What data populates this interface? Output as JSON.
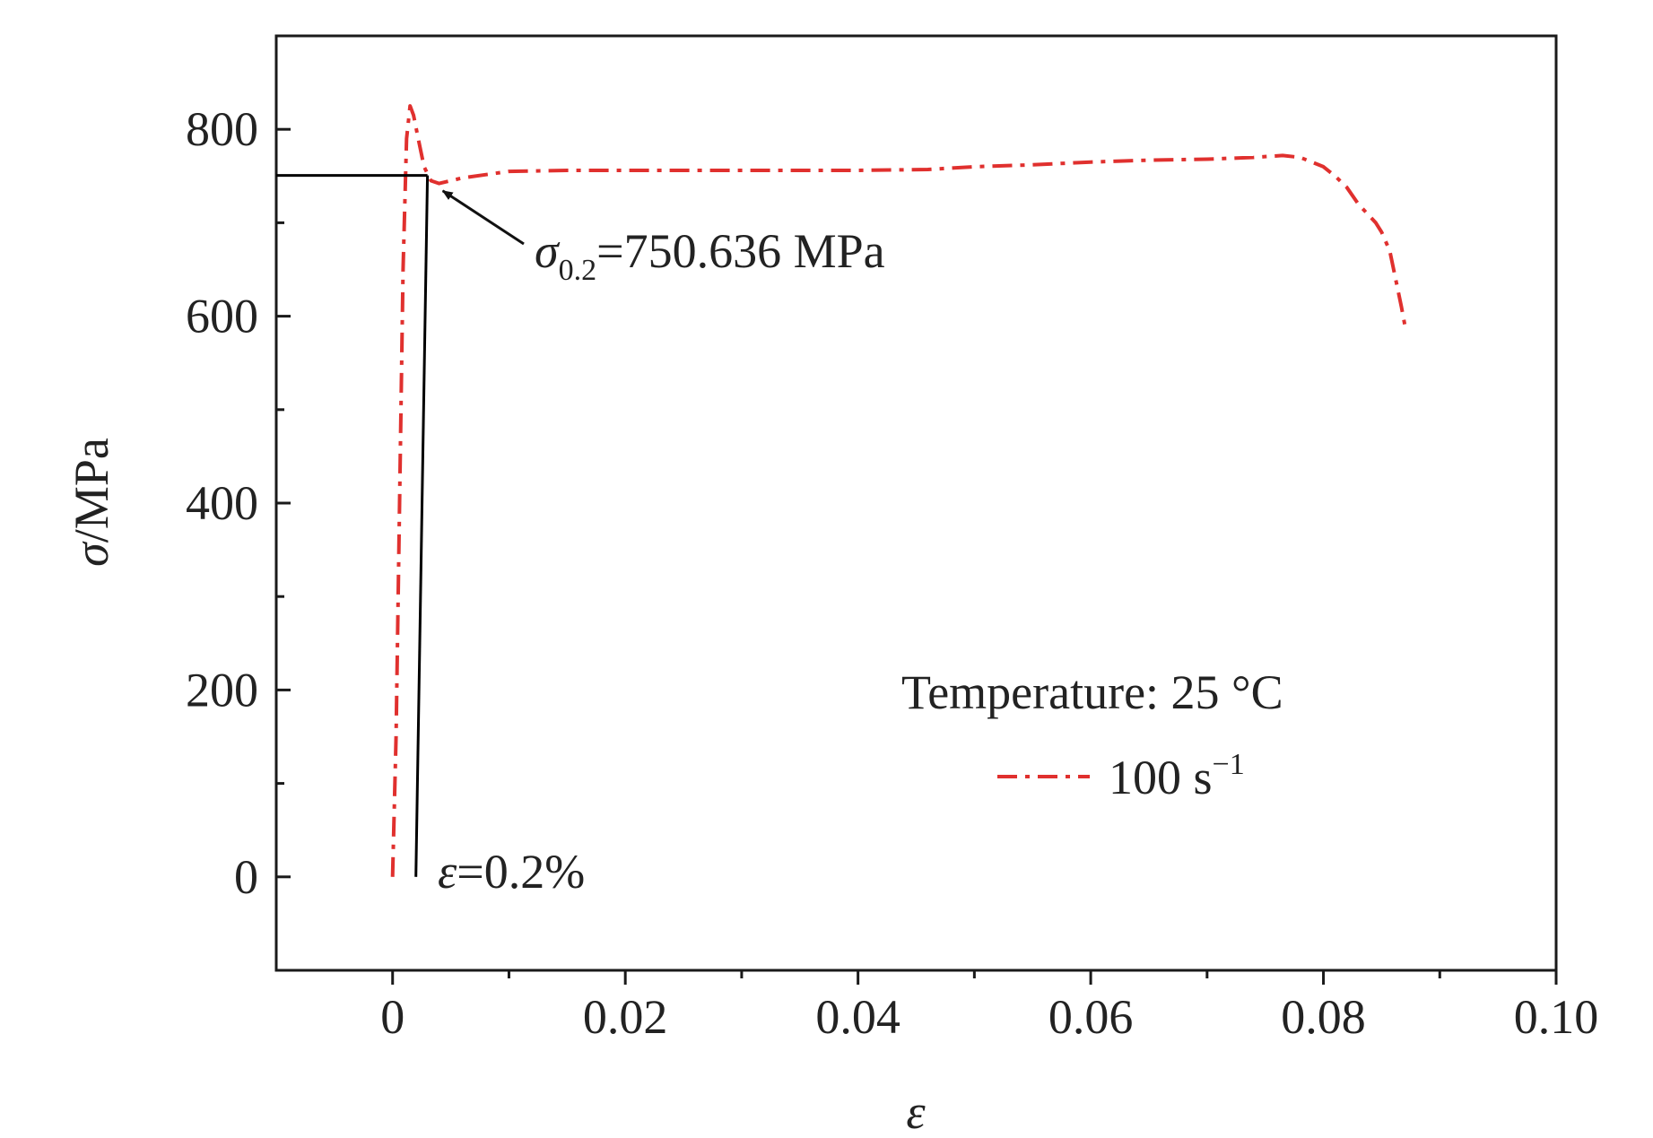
{
  "chart_data": {
    "type": "line",
    "title": "",
    "xlabel": "ε",
    "ylabel": "σ/MPa",
    "xlim": [
      -0.01,
      0.1
    ],
    "ylim": [
      -100,
      900
    ],
    "x_ticks": [
      {
        "value": 0,
        "label": "0"
      },
      {
        "value": 0.02,
        "label": "0.02"
      },
      {
        "value": 0.04,
        "label": "0.04"
      },
      {
        "value": 0.06,
        "label": "0.06"
      },
      {
        "value": 0.08,
        "label": "0.08"
      },
      {
        "value": 0.1,
        "label": "0.10"
      }
    ],
    "x_minor_ticks": [
      0.01,
      0.03,
      0.05,
      0.07,
      0.09
    ],
    "y_ticks": [
      {
        "value": 0,
        "label": "0"
      },
      {
        "value": 200,
        "label": "200"
      },
      {
        "value": 400,
        "label": "400"
      },
      {
        "value": 600,
        "label": "600"
      },
      {
        "value": 800,
        "label": "800"
      }
    ],
    "y_minor_ticks": [
      100,
      300,
      500,
      700
    ],
    "grid": false,
    "legend": {
      "placement": "lower-right",
      "title": "Temperature: 25 °C",
      "entries": [
        {
          "label_base": "100 s",
          "label_sup": "−1",
          "color": "#e0302e",
          "dash": "dash-dot"
        }
      ]
    },
    "series": [
      {
        "name": "100 s⁻¹",
        "color": "#e0302e",
        "style": "dash-dot",
        "x": [
          0,
          0.0003,
          0.0006,
          0.0009,
          0.0012,
          0.0015,
          0.0018,
          0.0022,
          0.0027,
          0.0033,
          0.004,
          0.006,
          0.01,
          0.015,
          0.02,
          0.03,
          0.04,
          0.046,
          0.05,
          0.055,
          0.06,
          0.065,
          0.07,
          0.074,
          0.0765,
          0.078,
          0.08,
          0.081,
          0.082,
          0.083,
          0.0845,
          0.085,
          0.0857,
          0.0862,
          0.0867,
          0.087
        ],
        "y": [
          0,
          150,
          400,
          650,
          790,
          825,
          815,
          790,
          760,
          745,
          742,
          748,
          755,
          756,
          756,
          756,
          756,
          757,
          760,
          762,
          765,
          767,
          768,
          770,
          772,
          770,
          760,
          750,
          738,
          720,
          700,
          690,
          670,
          640,
          610,
          590
        ]
      },
      {
        "name": "offset line",
        "color": "#000000",
        "style": "solid",
        "x": [
          0.002,
          0.003
        ],
        "y": [
          0,
          750.636
        ]
      },
      {
        "name": "yield level",
        "color": "#000000",
        "style": "solid",
        "x": [
          -0.01,
          0.003
        ],
        "y": [
          750.636,
          750.636
        ]
      }
    ],
    "annotations": [
      {
        "id": "yield",
        "sym": "σ",
        "sub": "0.2",
        "rest": "=750.636 MPa",
        "arrow_to": {
          "x": 0.004,
          "y": 738
        }
      },
      {
        "id": "strain",
        "sym": "ε",
        "rest": "=0.2%"
      }
    ]
  }
}
